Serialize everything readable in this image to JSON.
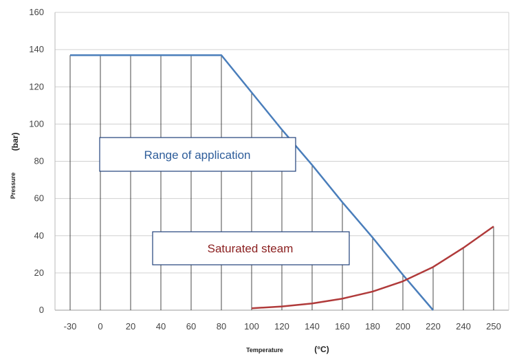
{
  "chart_data": {
    "type": "line",
    "xlabel": "Temperature",
    "xunit": "(°C)",
    "ylabel": "Pressure",
    "yunit": "(bar)",
    "x_ticks": [
      "-30",
      "0",
      "20",
      "40",
      "60",
      "80",
      "100",
      "120",
      "140",
      "160",
      "180",
      "200",
      "220",
      "240",
      "250"
    ],
    "y_ticks": [
      "0",
      "20",
      "40",
      "60",
      "80",
      "100",
      "120",
      "140",
      "160"
    ],
    "ylim": [
      0,
      160
    ],
    "grid": "horizontal and vertical",
    "series": [
      {
        "color": "#4a7ebb",
        "x": [
          "-30",
          "0",
          "20",
          "40",
          "60",
          "80",
          "100",
          "120",
          "140",
          "160",
          "180",
          "200",
          "220"
        ],
        "values": [
          137,
          137,
          137,
          137,
          137,
          137,
          117,
          97,
          78,
          58,
          39,
          19,
          0
        ]
      },
      {
        "color": "#b03a3a",
        "x": [
          "100",
          "120",
          "140",
          "160",
          "180",
          "200",
          "220",
          "240",
          "250"
        ],
        "values": [
          1.0,
          2.0,
          3.6,
          6.2,
          10.0,
          15.5,
          23.2,
          33.5,
          45.0
        ]
      }
    ],
    "annotations": [
      {
        "text": "Range of application",
        "color": "#2e5d9a",
        "border": "#1f3f7a"
      },
      {
        "text": "Saturated steam",
        "color": "#8b2020",
        "border": "#1f3f7a"
      }
    ]
  }
}
